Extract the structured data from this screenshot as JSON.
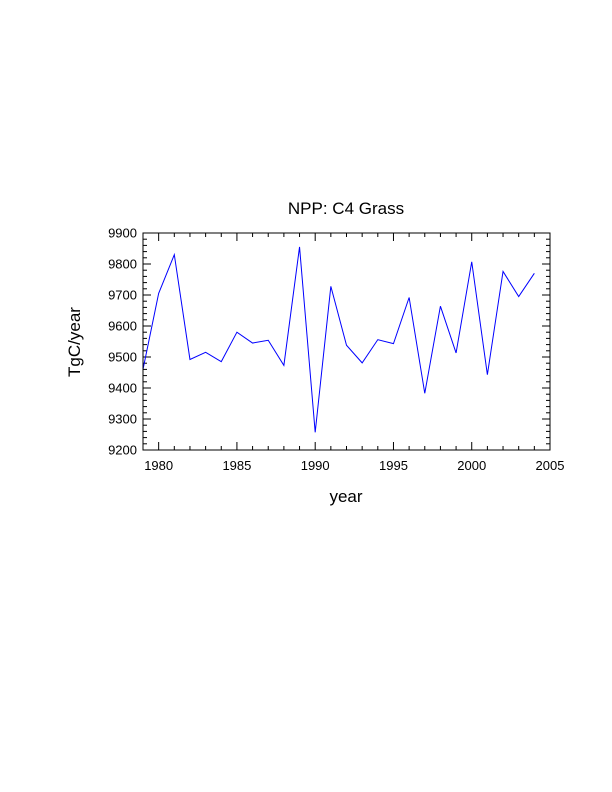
{
  "chart_data": {
    "type": "line",
    "title": "NPP: C4 Grass",
    "xlabel": "year",
    "ylabel": "TgC/year",
    "xlim": [
      1979,
      2005
    ],
    "ylim": [
      9200,
      9900
    ],
    "x_ticks": [
      1980,
      1985,
      1990,
      1995,
      2000,
      2005
    ],
    "y_ticks": [
      9200,
      9300,
      9400,
      9500,
      9600,
      9700,
      9800,
      9900
    ],
    "x_minor_step": 1,
    "y_minor_step": 20,
    "grid": false,
    "series": [
      {
        "name": "NPP C4 Grass",
        "color": "#0000ff",
        "x": [
          1979,
          1980,
          1981,
          1982,
          1983,
          1984,
          1985,
          1986,
          1987,
          1988,
          1989,
          1990,
          1991,
          1992,
          1993,
          1994,
          1995,
          1996,
          1997,
          1998,
          1999,
          2000,
          2001,
          2002,
          2003,
          2004
        ],
        "values": [
          9460,
          9705,
          9830,
          9492,
          9515,
          9485,
          9580,
          9545,
          9554,
          9473,
          9855,
          9257,
          9728,
          9538,
          9481,
          9556,
          9543,
          9692,
          9383,
          9664,
          9513,
          9807,
          9443,
          9776,
          9695,
          9770
        ]
      }
    ]
  }
}
